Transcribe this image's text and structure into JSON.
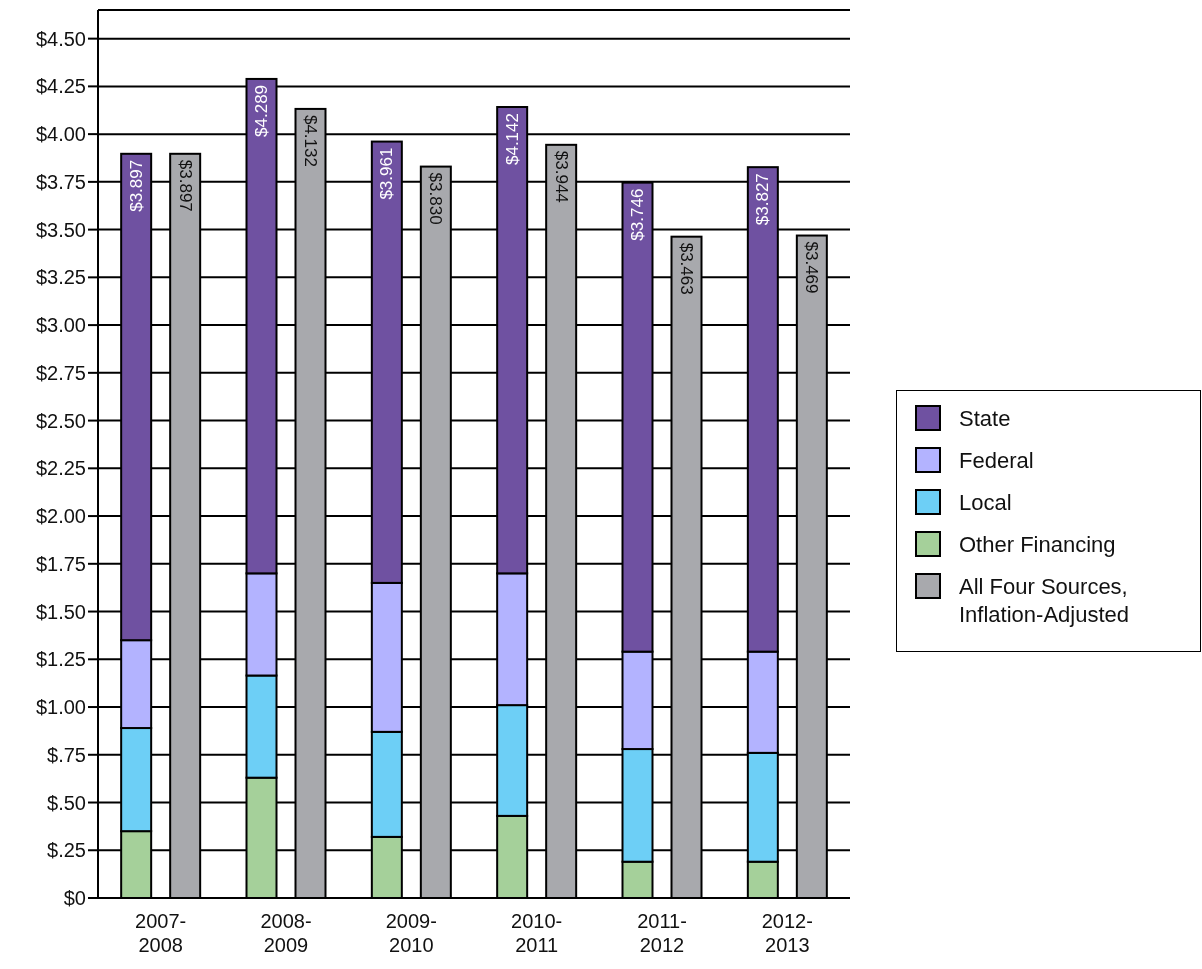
{
  "chart_data": {
    "type": "bar",
    "categories": [
      "2007-2008",
      "2008-2009",
      "2009-2010",
      "2010-2011",
      "2011-2012",
      "2012-2013"
    ],
    "series": [
      {
        "name": "Other Financing",
        "color": "#a5d09a",
        "base": [
          0,
          0,
          0,
          0,
          0,
          0
        ],
        "values": [
          0.35,
          0.63,
          0.32,
          0.43,
          0.19,
          0.19
        ]
      },
      {
        "name": "Local",
        "color": "#6dcff6",
        "base": [
          0.35,
          0.63,
          0.32,
          0.43,
          0.19,
          0.19
        ],
        "values": [
          0.54,
          0.535,
          0.55,
          0.58,
          0.59,
          0.57
        ]
      },
      {
        "name": "Federal",
        "color": "#b3b3ff",
        "base": [
          0.89,
          1.165,
          0.87,
          1.01,
          0.78,
          0.76
        ],
        "values": [
          0.46,
          0.535,
          0.78,
          0.69,
          0.51,
          0.53
        ]
      },
      {
        "name": "State",
        "color": "#6f51a1",
        "base": [
          1.35,
          1.7,
          1.65,
          1.7,
          1.29,
          1.29
        ],
        "values": [
          2.547,
          2.589,
          2.311,
          2.442,
          2.456,
          2.537
        ],
        "value_labels": [
          "$3.897",
          "$4.289",
          "$3.961",
          "$4.142",
          "$3.746",
          "$3.827"
        ]
      },
      {
        "name": "All Four Sources, Inflation-Adjusted",
        "color": "#a8a9ad",
        "values": [
          3.897,
          4.132,
          3.83,
          3.944,
          3.463,
          3.469
        ],
        "value_labels": [
          "$3.897",
          "$4.132",
          "$3.830",
          "$3.944",
          "$3.463",
          "$3.469"
        ]
      }
    ],
    "ylim": [
      0,
      4.65
    ],
    "yticks": [
      {
        "value": 0,
        "label": "$0"
      },
      {
        "value": 0.25,
        "label": "$.25"
      },
      {
        "value": 0.5,
        "label": "$.50"
      },
      {
        "value": 0.75,
        "label": "$.75"
      },
      {
        "value": 1,
        "label": "$1.00"
      },
      {
        "value": 1.25,
        "label": "$1.25"
      },
      {
        "value": 1.5,
        "label": "$1.50"
      },
      {
        "value": 1.75,
        "label": "$1.75"
      },
      {
        "value": 2,
        "label": "$2.00"
      },
      {
        "value": 2.25,
        "label": "$2.25"
      },
      {
        "value": 2.5,
        "label": "$2.50"
      },
      {
        "value": 2.75,
        "label": "$2.75"
      },
      {
        "value": 3,
        "label": "$3.00"
      },
      {
        "value": 3.25,
        "label": "$3.25"
      },
      {
        "value": 3.5,
        "label": "$3.50"
      },
      {
        "value": 3.75,
        "label": "$3.75"
      },
      {
        "value": 4,
        "label": "$4.00"
      },
      {
        "value": 4.25,
        "label": "$4.25"
      },
      {
        "value": 4.5,
        "label": "$4.50"
      }
    ],
    "grid": "y",
    "legend": "right"
  }
}
